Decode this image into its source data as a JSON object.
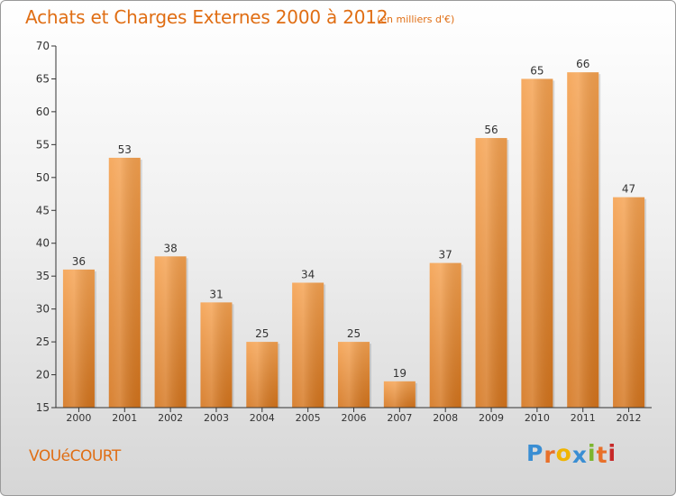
{
  "chart_data": {
    "type": "bar",
    "title": "Achats et Charges Externes 2000 à 2012",
    "subtitle": "(en milliers d'€)",
    "categories": [
      "2000",
      "2001",
      "2002",
      "2003",
      "2004",
      "2005",
      "2006",
      "2007",
      "2008",
      "2009",
      "2010",
      "2011",
      "2012"
    ],
    "values": [
      36,
      53,
      38,
      31,
      25,
      34,
      25,
      19,
      37,
      56,
      65,
      66,
      47
    ],
    "ylim": [
      15,
      70
    ],
    "yticks": [
      15,
      20,
      25,
      30,
      35,
      40,
      45,
      50,
      55,
      60,
      65,
      70
    ],
    "grid": false,
    "bar_color": "#f5a14f",
    "bar_color_dark": "#d4741c"
  },
  "footer": {
    "commune": "VOUéCOURT",
    "brand_letters": [
      "P",
      "r",
      "o",
      "x",
      "i",
      "t",
      "i"
    ],
    "brand_colors": [
      "#3a8ed3",
      "#e8702a",
      "#f0b400",
      "#3a8ed3",
      "#7cb52e",
      "#e8702a",
      "#c62828"
    ]
  }
}
